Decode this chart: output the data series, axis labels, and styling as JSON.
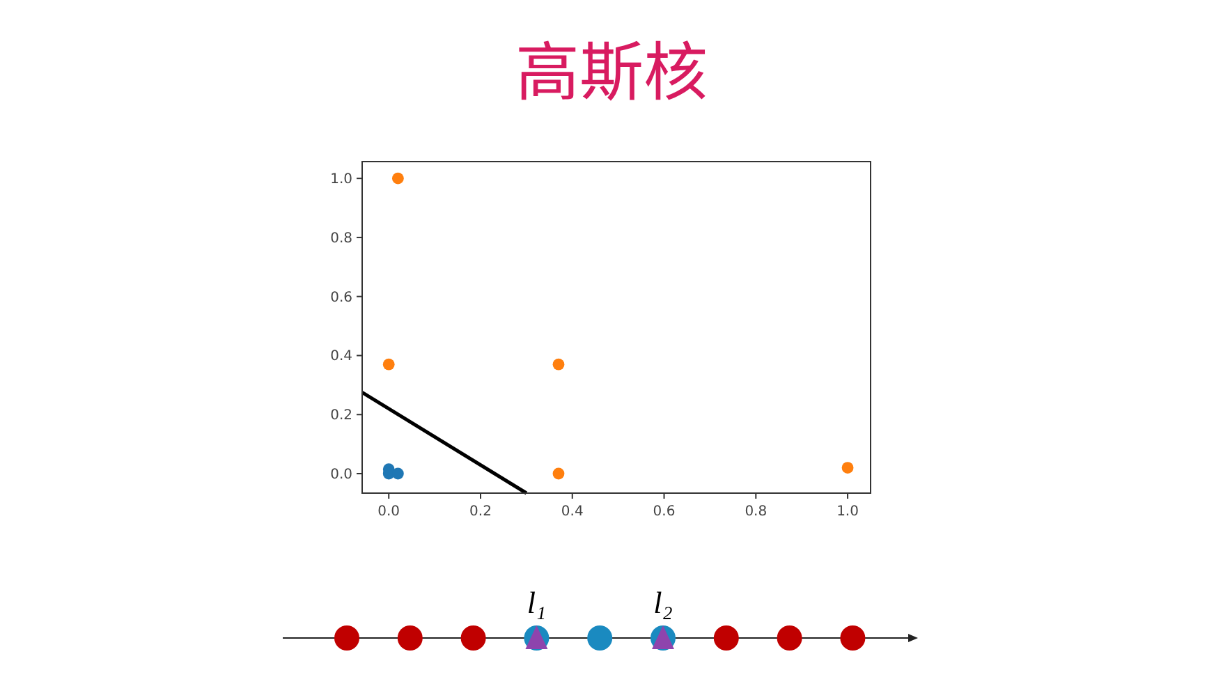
{
  "chart_data": {
    "type": "scatter",
    "title": "高斯核",
    "xlim": [
      -0.058,
      1.05
    ],
    "ylim": [
      -0.066,
      1.057
    ],
    "xticks": [
      {
        "value": 0,
        "label": "0.0"
      },
      0.2,
      0.4,
      0.6,
      0.8,
      {
        "value": 1,
        "label": "1.0"
      }
    ],
    "yticks": [
      {
        "value": 0,
        "label": "0.0"
      },
      0.2,
      0.4,
      0.6,
      0.8,
      {
        "value": 1,
        "label": "1.0"
      }
    ],
    "series": [
      {
        "color": "#1f77b4",
        "marker": "circle",
        "x": [
          0,
          0,
          0.02
        ],
        "values": [
          0.015,
          0,
          0
        ]
      },
      {
        "color": "#ff7f0e",
        "marker": "circle",
        "x": [
          0.02,
          0,
          0.37,
          0.37,
          1.0
        ],
        "values": [
          1.0,
          0.37,
          0.37,
          0,
          0.02
        ]
      },
      {
        "type": "line",
        "color": "#000000",
        "line_style": "solid",
        "marker": "none",
        "x": [
          -0.058,
          0.3
        ],
        "values": [
          0.275,
          -0.066
        ]
      }
    ],
    "annotations": [
      "l₁",
      "l₂"
    ]
  }
}
